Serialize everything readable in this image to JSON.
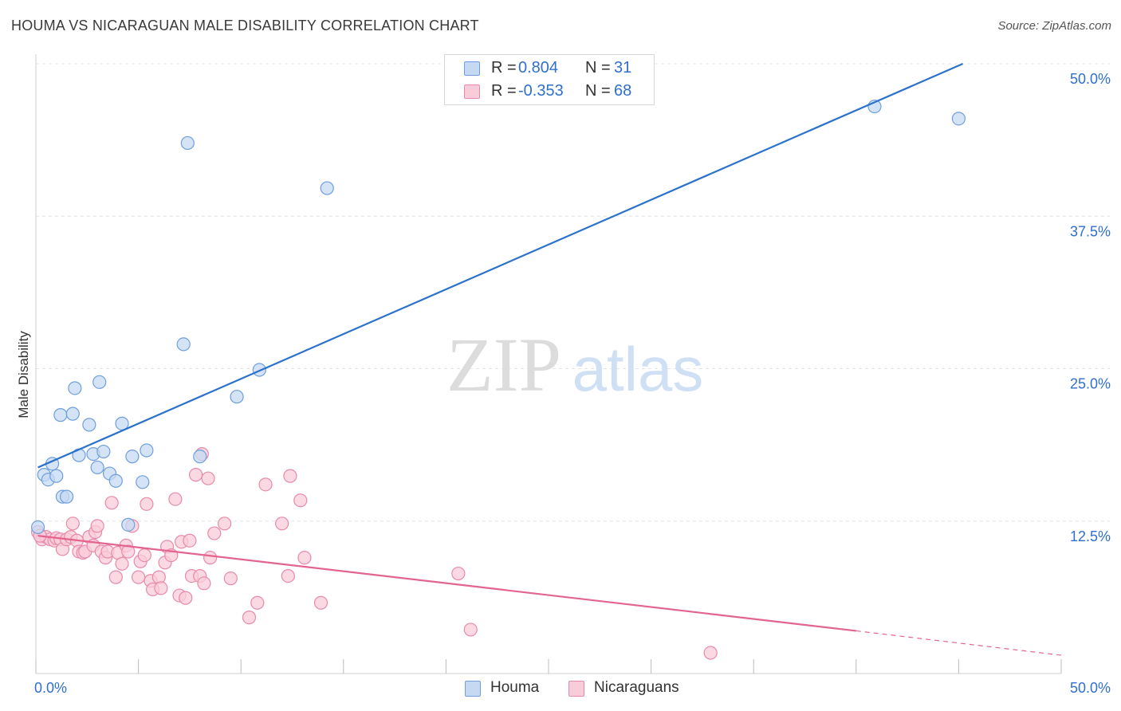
{
  "title": "HOUMA VS NICARAGUAN MALE DISABILITY CORRELATION CHART",
  "source": "Source: ZipAtlas.com",
  "watermark": {
    "zip": "ZIP",
    "atlas": "atlas"
  },
  "legend_top": {
    "rows": [
      {
        "r_label": "R =",
        "r_value": "0.804",
        "n_label": "N =",
        "n_value": "31"
      },
      {
        "r_label": "R =",
        "r_value": "-0.353",
        "n_label": "N =",
        "n_value": "68"
      }
    ]
  },
  "legend_bottom": [
    "Houma",
    "Nicaraguans"
  ],
  "colors": {
    "houma_fill": "#c5d9f3",
    "houma_stroke": "#6e9fdc",
    "houma_line": "#2b72cc",
    "nica_fill": "#f8ccd9",
    "nica_stroke": "#e98aaa",
    "nica_line": "#e3648f",
    "axis_label": "#2f6fcf",
    "grid": "#e4e4e4"
  },
  "chart_data": {
    "type": "scatter",
    "title": "HOUMA VS NICARAGUAN MALE DISABILITY CORRELATION CHART",
    "ylabel": "Male Disability",
    "xlabel": "",
    "xlim": [
      0,
      50
    ],
    "ylim": [
      0,
      50
    ],
    "x_tick_labels": [
      "0.0%",
      "50.0%"
    ],
    "y_ticks": [
      12.5,
      25.0,
      37.5,
      50.0
    ],
    "y_tick_labels": [
      "12.5%",
      "25.0%",
      "37.5%",
      "50.0%"
    ],
    "grid": "horizontal dashed",
    "legend_placement": "top-center",
    "series": [
      {
        "name": "Houma",
        "r": 0.804,
        "n": 31,
        "trend": {
          "x": [
            0.1,
            45.2
          ],
          "y": [
            16.9,
            50.0
          ],
          "dashed_to": null
        },
        "points": [
          [
            0.1,
            12.0
          ],
          [
            0.4,
            16.3
          ],
          [
            0.6,
            15.9
          ],
          [
            0.8,
            17.2
          ],
          [
            1.0,
            16.2
          ],
          [
            1.2,
            21.2
          ],
          [
            1.3,
            14.5
          ],
          [
            1.5,
            14.5
          ],
          [
            1.8,
            21.3
          ],
          [
            1.9,
            23.4
          ],
          [
            2.1,
            17.9
          ],
          [
            2.6,
            20.4
          ],
          [
            2.8,
            18.0
          ],
          [
            3.0,
            16.9
          ],
          [
            3.1,
            23.9
          ],
          [
            3.3,
            18.2
          ],
          [
            3.6,
            16.4
          ],
          [
            3.9,
            15.8
          ],
          [
            4.2,
            20.5
          ],
          [
            4.5,
            12.2
          ],
          [
            4.7,
            17.8
          ],
          [
            5.2,
            15.7
          ],
          [
            5.4,
            18.3
          ],
          [
            7.2,
            27.0
          ],
          [
            7.4,
            43.5
          ],
          [
            8.0,
            17.8
          ],
          [
            9.8,
            22.7
          ],
          [
            10.9,
            24.9
          ],
          [
            14.2,
            39.8
          ],
          [
            40.9,
            46.5
          ],
          [
            45.0,
            45.5
          ]
        ]
      },
      {
        "name": "Nicaraguans",
        "r": -0.353,
        "n": 68,
        "trend": {
          "x": [
            0.1,
            40.0
          ],
          "y": [
            11.3,
            3.5
          ],
          "dashed_to": [
            50.0,
            1.5
          ]
        },
        "points": [
          [
            0.1,
            11.6
          ],
          [
            0.3,
            11.0
          ],
          [
            0.5,
            11.2
          ],
          [
            0.7,
            11.0
          ],
          [
            0.9,
            10.9
          ],
          [
            1.0,
            11.1
          ],
          [
            1.2,
            11.0
          ],
          [
            1.3,
            10.2
          ],
          [
            1.5,
            11.0
          ],
          [
            1.7,
            11.2
          ],
          [
            1.8,
            12.3
          ],
          [
            2.0,
            10.9
          ],
          [
            2.1,
            10.0
          ],
          [
            2.3,
            9.9
          ],
          [
            2.4,
            10.0
          ],
          [
            2.6,
            11.2
          ],
          [
            2.8,
            10.5
          ],
          [
            2.9,
            11.6
          ],
          [
            3.0,
            12.1
          ],
          [
            3.2,
            10.0
          ],
          [
            3.4,
            9.5
          ],
          [
            3.5,
            10.0
          ],
          [
            3.7,
            14.0
          ],
          [
            3.9,
            7.9
          ],
          [
            4.0,
            9.9
          ],
          [
            4.2,
            9.0
          ],
          [
            4.4,
            10.5
          ],
          [
            4.5,
            10.0
          ],
          [
            4.7,
            12.1
          ],
          [
            5.0,
            7.9
          ],
          [
            5.1,
            9.2
          ],
          [
            5.3,
            9.7
          ],
          [
            5.4,
            13.9
          ],
          [
            5.6,
            7.6
          ],
          [
            5.7,
            6.9
          ],
          [
            6.0,
            7.9
          ],
          [
            6.1,
            7.0
          ],
          [
            6.3,
            9.1
          ],
          [
            6.4,
            10.4
          ],
          [
            6.6,
            9.7
          ],
          [
            6.8,
            14.3
          ],
          [
            7.0,
            6.4
          ],
          [
            7.1,
            10.8
          ],
          [
            7.3,
            6.2
          ],
          [
            7.5,
            10.9
          ],
          [
            7.6,
            8.0
          ],
          [
            7.8,
            16.3
          ],
          [
            8.0,
            8.0
          ],
          [
            8.1,
            18.0
          ],
          [
            8.2,
            7.4
          ],
          [
            8.4,
            16.0
          ],
          [
            8.5,
            9.5
          ],
          [
            8.7,
            11.5
          ],
          [
            9.2,
            12.3
          ],
          [
            9.5,
            7.8
          ],
          [
            10.4,
            4.6
          ],
          [
            10.8,
            5.8
          ],
          [
            11.2,
            15.5
          ],
          [
            12.0,
            12.3
          ],
          [
            12.3,
            8.0
          ],
          [
            12.4,
            16.2
          ],
          [
            12.9,
            14.2
          ],
          [
            13.1,
            9.5
          ],
          [
            13.9,
            5.8
          ],
          [
            20.6,
            8.2
          ],
          [
            21.2,
            3.6
          ],
          [
            32.9,
            1.7
          ],
          [
            0.2,
            11.3
          ]
        ]
      }
    ]
  }
}
